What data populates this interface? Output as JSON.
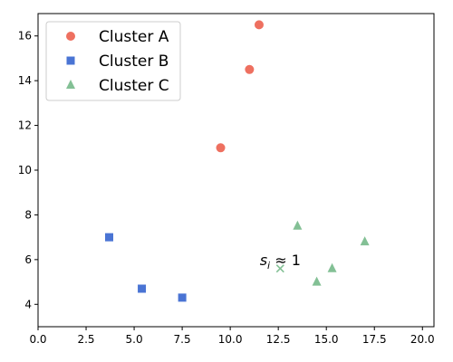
{
  "chart_data": {
    "type": "scatter",
    "title": "",
    "xlabel": "",
    "ylabel": "",
    "xlim": [
      0,
      20.6
    ],
    "ylim": [
      3,
      17
    ],
    "x_ticks": [
      0,
      2.5,
      5,
      7.5,
      10,
      12.5,
      15,
      17.5,
      20
    ],
    "x_tick_labels": [
      "0.0",
      "2.5",
      "5.0",
      "7.5",
      "10.0",
      "12.5",
      "15.0",
      "17.5",
      "20.0"
    ],
    "y_ticks": [
      4,
      6,
      8,
      10,
      12,
      14,
      16
    ],
    "y_tick_labels": [
      "4",
      "6",
      "8",
      "10",
      "12",
      "14",
      "16"
    ],
    "grid": false,
    "legend": "top-left",
    "series": [
      {
        "name": "Cluster A",
        "marker": "circle",
        "color": "#ee7060",
        "points": [
          [
            9.5,
            11.0
          ],
          [
            11.0,
            14.5
          ],
          [
            11.5,
            16.5
          ]
        ]
      },
      {
        "name": "Cluster B",
        "marker": "square",
        "color": "#4a74d4",
        "points": [
          [
            3.7,
            7.0
          ],
          [
            5.4,
            4.7
          ],
          [
            7.5,
            4.3
          ]
        ]
      },
      {
        "name": "Cluster C",
        "marker": "triangle",
        "color": "#83c095",
        "points": [
          [
            13.5,
            7.5
          ],
          [
            14.5,
            5.0
          ],
          [
            15.3,
            5.6
          ],
          [
            17.0,
            6.8
          ]
        ]
      }
    ],
    "highlight_point": {
      "x": 12.6,
      "y": 5.6,
      "marker": "x",
      "color": "#83c095"
    },
    "annotation": {
      "symbol": "s",
      "subscript": "i",
      "relation": " ≈ 1",
      "x": 12.6,
      "y": 6.0
    }
  }
}
